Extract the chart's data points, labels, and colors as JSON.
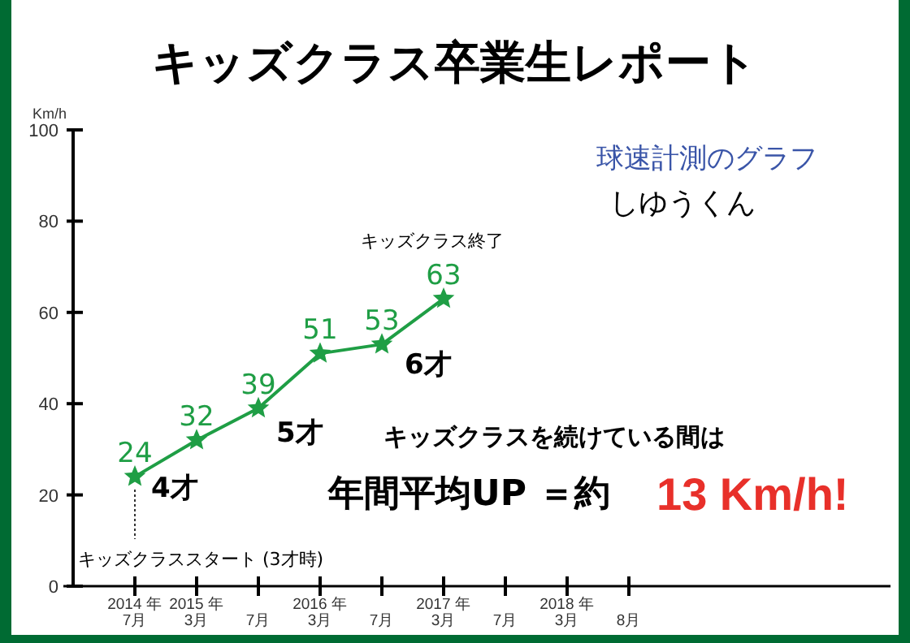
{
  "chart_data": {
    "type": "line",
    "title": "キッズクラス卒業生レポート",
    "subtitle": "球速計測のグラフ",
    "ylabel": "Km/h",
    "categories": [
      "2014 年\n7月",
      "2015 年\n3月",
      "7月",
      "2016 年\n3月",
      "7月",
      "2017 年\n3月",
      "7月",
      "2018 年\n3月",
      "8月"
    ],
    "series": [
      {
        "color": "#1f9e45",
        "values": [
          24,
          32,
          39,
          51,
          53,
          63,
          null,
          null,
          null
        ]
      }
    ],
    "ylim": [
      0,
      100
    ],
    "yticks": [
      0,
      20,
      40,
      60,
      80,
      100
    ],
    "grid": false,
    "marker": "star",
    "data_labels": true,
    "annotations": [
      "しゆうくん",
      "キッズクラススタート (3才時)",
      "キッズクラス終了",
      "4才",
      "5才",
      "6才",
      "キッズクラスを続けている間は",
      "年間平均UP ＝約",
      "13 Km/h!"
    ]
  }
}
